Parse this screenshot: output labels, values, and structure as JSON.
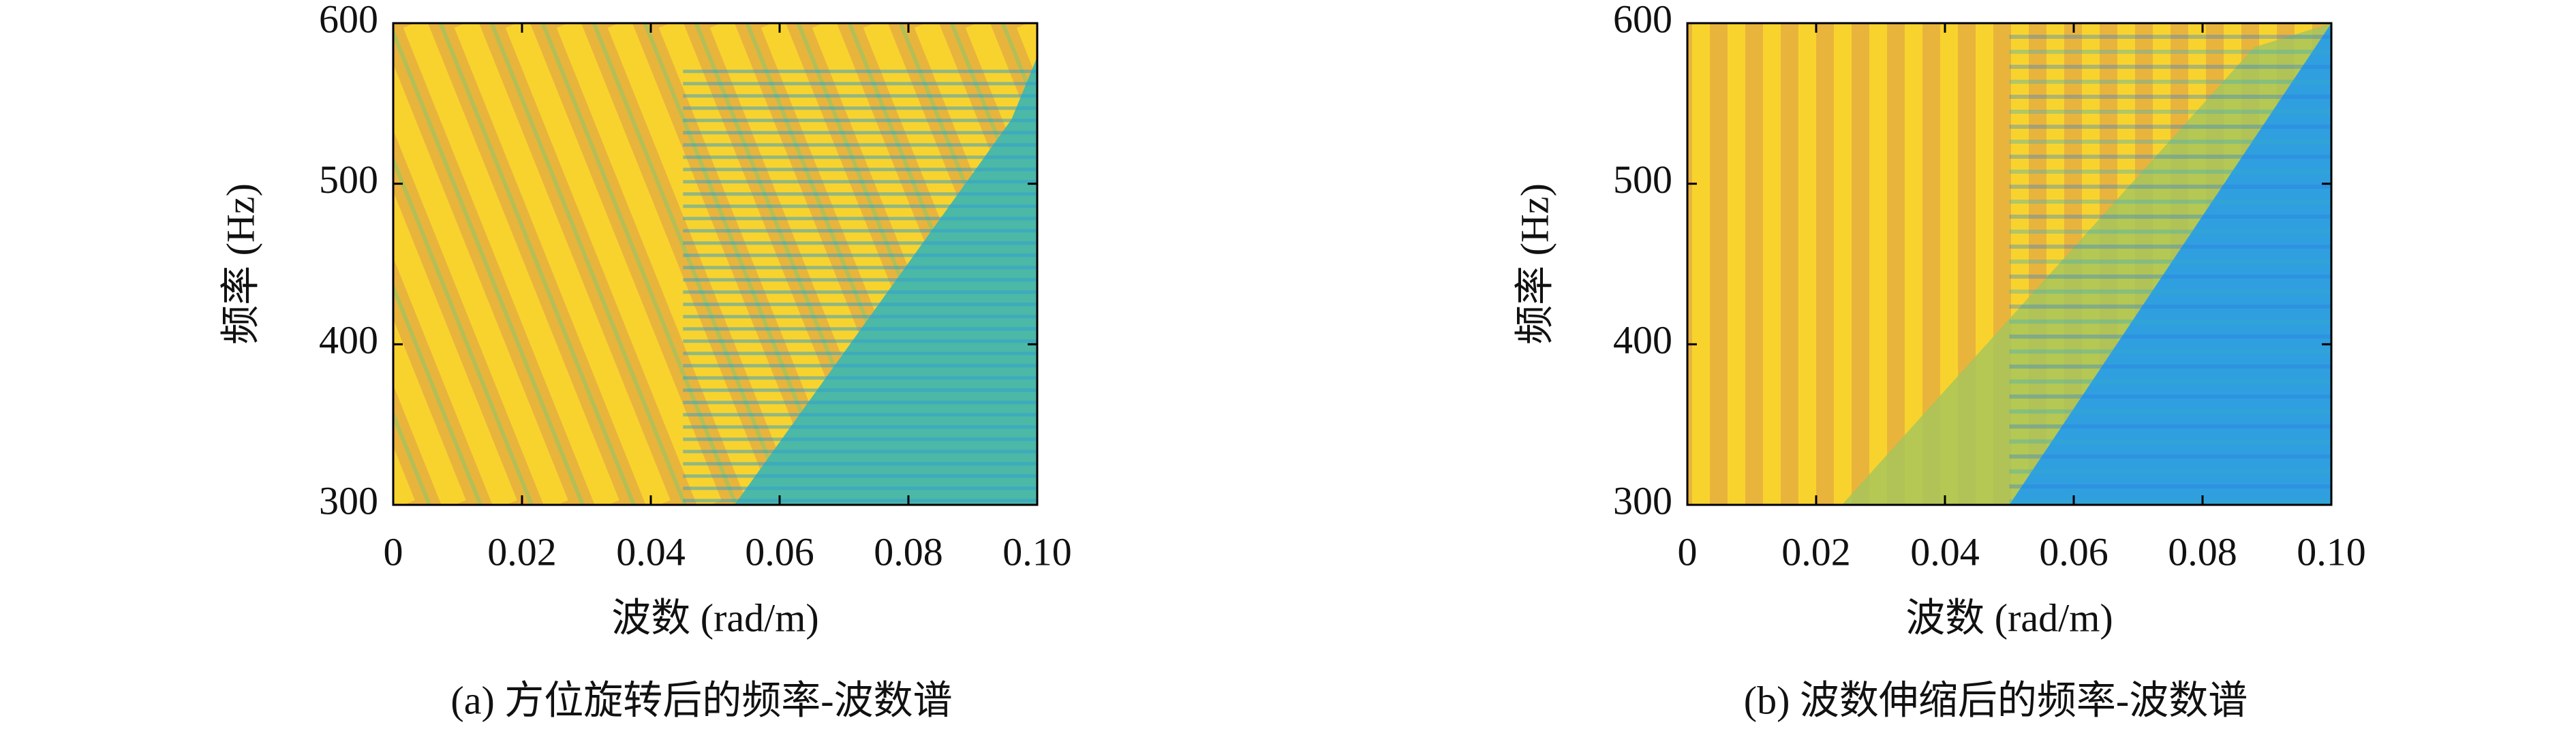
{
  "chart_data": [
    {
      "type": "heatmap",
      "caption": "(a) 方位旋转后的频率-波数谱",
      "xlabel": "波数 (rad/m)",
      "ylabel": "频率 (Hz)",
      "xlim": [
        0,
        0.1
      ],
      "ylim": [
        300,
        600
      ],
      "xticks": [
        0,
        0.02,
        0.04,
        0.06,
        0.08,
        {
          "value": 0.1,
          "label": "0.10"
        }
      ],
      "yticks": [
        300,
        400,
        500,
        600
      ]
    },
    {
      "type": "heatmap",
      "caption": "(b) 波数伸缩后的频率-波数谱",
      "xlabel": "波数 (rad/m)",
      "ylabel": "频率 (Hz)",
      "xlim": [
        0,
        0.1
      ],
      "ylim": [
        300,
        600
      ],
      "xticks": [
        0,
        0.02,
        0.04,
        0.06,
        0.08,
        {
          "value": 0.1,
          "label": "0.10"
        }
      ],
      "yticks": [
        300,
        400,
        500,
        600
      ]
    }
  ]
}
